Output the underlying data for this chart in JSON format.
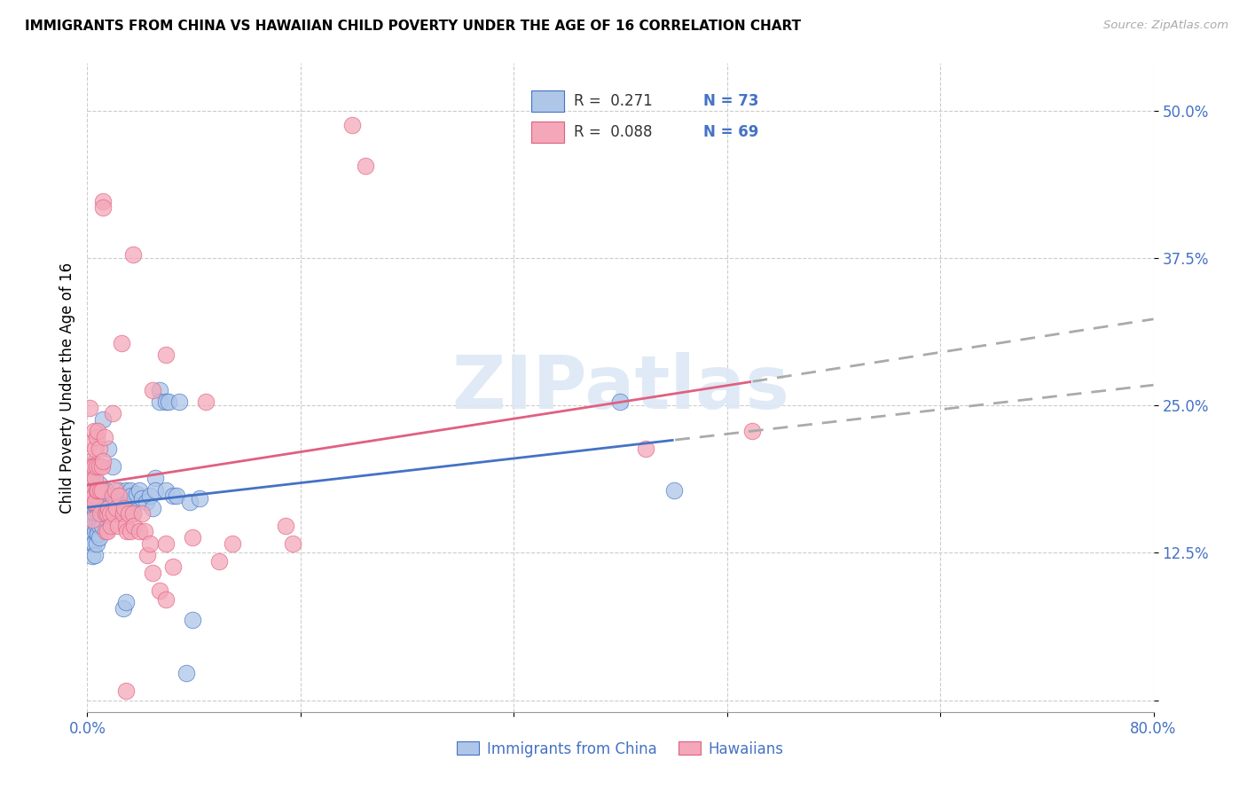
{
  "title": "IMMIGRANTS FROM CHINA VS HAWAIIAN CHILD POVERTY UNDER THE AGE OF 16 CORRELATION CHART",
  "source": "Source: ZipAtlas.com",
  "ylabel": "Child Poverty Under the Age of 16",
  "yticks": [
    0.0,
    0.125,
    0.25,
    0.375,
    0.5
  ],
  "ytick_labels": [
    "",
    "12.5%",
    "25.0%",
    "37.5%",
    "50.0%"
  ],
  "xlim": [
    0.0,
    0.8
  ],
  "ylim": [
    -0.01,
    0.54
  ],
  "color_blue": "#aec6e8",
  "color_pink": "#f4a7b9",
  "trendline_blue": "#4472c4",
  "trendline_pink": "#e06080",
  "trendline_dashed": "#aaaaaa",
  "watermark_color": "#dde8f5",
  "blue_scatter": [
    [
      0.001,
      0.2
    ],
    [
      0.002,
      0.18
    ],
    [
      0.002,
      0.195
    ],
    [
      0.002,
      0.165
    ],
    [
      0.003,
      0.178
    ],
    [
      0.003,
      0.158
    ],
    [
      0.003,
      0.143
    ],
    [
      0.004,
      0.163
    ],
    [
      0.004,
      0.148
    ],
    [
      0.004,
      0.133
    ],
    [
      0.004,
      0.122
    ],
    [
      0.005,
      0.178
    ],
    [
      0.005,
      0.163
    ],
    [
      0.005,
      0.148
    ],
    [
      0.005,
      0.133
    ],
    [
      0.006,
      0.168
    ],
    [
      0.006,
      0.158
    ],
    [
      0.006,
      0.143
    ],
    [
      0.006,
      0.123
    ],
    [
      0.007,
      0.178
    ],
    [
      0.007,
      0.163
    ],
    [
      0.007,
      0.148
    ],
    [
      0.007,
      0.133
    ],
    [
      0.008,
      0.173
    ],
    [
      0.008,
      0.158
    ],
    [
      0.008,
      0.141
    ],
    [
      0.009,
      0.183
    ],
    [
      0.009,
      0.163
    ],
    [
      0.009,
      0.148
    ],
    [
      0.009,
      0.138
    ],
    [
      0.01,
      0.173
    ],
    [
      0.011,
      0.163
    ],
    [
      0.011,
      0.148
    ],
    [
      0.012,
      0.238
    ],
    [
      0.013,
      0.168
    ],
    [
      0.014,
      0.178
    ],
    [
      0.015,
      0.163
    ],
    [
      0.016,
      0.213
    ],
    [
      0.017,
      0.158
    ],
    [
      0.019,
      0.198
    ],
    [
      0.021,
      0.168
    ],
    [
      0.021,
      0.158
    ],
    [
      0.024,
      0.178
    ],
    [
      0.025,
      0.173
    ],
    [
      0.026,
      0.168
    ],
    [
      0.027,
      0.163
    ],
    [
      0.029,
      0.178
    ],
    [
      0.031,
      0.168
    ],
    [
      0.032,
      0.178
    ],
    [
      0.033,
      0.173
    ],
    [
      0.034,
      0.158
    ],
    [
      0.037,
      0.175
    ],
    [
      0.039,
      0.178
    ],
    [
      0.041,
      0.171
    ],
    [
      0.044,
      0.168
    ],
    [
      0.047,
      0.173
    ],
    [
      0.049,
      0.163
    ],
    [
      0.051,
      0.188
    ],
    [
      0.051,
      0.178
    ],
    [
      0.054,
      0.263
    ],
    [
      0.054,
      0.253
    ],
    [
      0.059,
      0.178
    ],
    [
      0.059,
      0.253
    ],
    [
      0.061,
      0.253
    ],
    [
      0.064,
      0.173
    ],
    [
      0.067,
      0.173
    ],
    [
      0.069,
      0.253
    ],
    [
      0.074,
      0.023
    ],
    [
      0.077,
      0.168
    ],
    [
      0.079,
      0.068
    ],
    [
      0.084,
      0.171
    ],
    [
      0.027,
      0.078
    ],
    [
      0.029,
      0.083
    ],
    [
      0.44,
      0.178
    ],
    [
      0.4,
      0.253
    ]
  ],
  "pink_scatter": [
    [
      0.001,
      0.198
    ],
    [
      0.002,
      0.218
    ],
    [
      0.002,
      0.248
    ],
    [
      0.002,
      0.198
    ],
    [
      0.003,
      0.188
    ],
    [
      0.003,
      0.168
    ],
    [
      0.003,
      0.203
    ],
    [
      0.004,
      0.198
    ],
    [
      0.004,
      0.178
    ],
    [
      0.004,
      0.153
    ],
    [
      0.005,
      0.228
    ],
    [
      0.005,
      0.198
    ],
    [
      0.005,
      0.173
    ],
    [
      0.006,
      0.213
    ],
    [
      0.006,
      0.188
    ],
    [
      0.006,
      0.168
    ],
    [
      0.007,
      0.223
    ],
    [
      0.007,
      0.198
    ],
    [
      0.007,
      0.178
    ],
    [
      0.008,
      0.228
    ],
    [
      0.008,
      0.178
    ],
    [
      0.009,
      0.213
    ],
    [
      0.009,
      0.198
    ],
    [
      0.01,
      0.178
    ],
    [
      0.01,
      0.158
    ],
    [
      0.011,
      0.198
    ],
    [
      0.011,
      0.178
    ],
    [
      0.012,
      0.203
    ],
    [
      0.013,
      0.223
    ],
    [
      0.014,
      0.158
    ],
    [
      0.014,
      0.143
    ],
    [
      0.015,
      0.158
    ],
    [
      0.015,
      0.143
    ],
    [
      0.016,
      0.163
    ],
    [
      0.017,
      0.158
    ],
    [
      0.018,
      0.148
    ],
    [
      0.019,
      0.173
    ],
    [
      0.02,
      0.158
    ],
    [
      0.021,
      0.178
    ],
    [
      0.022,
      0.163
    ],
    [
      0.023,
      0.148
    ],
    [
      0.024,
      0.173
    ],
    [
      0.026,
      0.303
    ],
    [
      0.027,
      0.158
    ],
    [
      0.028,
      0.163
    ],
    [
      0.029,
      0.148
    ],
    [
      0.03,
      0.143
    ],
    [
      0.031,
      0.158
    ],
    [
      0.032,
      0.143
    ],
    [
      0.034,
      0.158
    ],
    [
      0.035,
      0.148
    ],
    [
      0.039,
      0.143
    ],
    [
      0.041,
      0.158
    ],
    [
      0.043,
      0.143
    ],
    [
      0.045,
      0.123
    ],
    [
      0.047,
      0.133
    ],
    [
      0.049,
      0.263
    ],
    [
      0.049,
      0.108
    ],
    [
      0.054,
      0.093
    ],
    [
      0.059,
      0.293
    ],
    [
      0.059,
      0.133
    ],
    [
      0.064,
      0.113
    ],
    [
      0.079,
      0.138
    ],
    [
      0.089,
      0.253
    ],
    [
      0.099,
      0.118
    ],
    [
      0.109,
      0.133
    ],
    [
      0.149,
      0.148
    ],
    [
      0.154,
      0.133
    ],
    [
      0.029,
      0.008
    ],
    [
      0.059,
      0.085
    ],
    [
      0.419,
      0.213
    ],
    [
      0.499,
      0.228
    ],
    [
      0.019,
      0.243
    ],
    [
      0.012,
      0.423
    ],
    [
      0.012,
      0.418
    ],
    [
      0.034,
      0.378
    ],
    [
      0.199,
      0.488
    ],
    [
      0.209,
      0.453
    ]
  ]
}
